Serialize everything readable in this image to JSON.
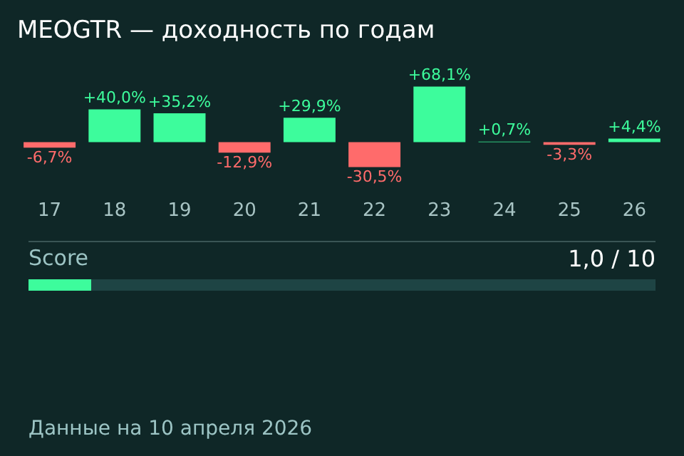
{
  "chart_data": {
    "type": "bar",
    "title": "MEOGTR — доходность по годам",
    "categories": [
      "17",
      "18",
      "19",
      "20",
      "21",
      "22",
      "23",
      "24",
      "25",
      "26"
    ],
    "values": [
      -6.7,
      40.0,
      35.2,
      -12.9,
      29.9,
      -30.5,
      68.1,
      0.7,
      -3.3,
      4.4
    ],
    "colors": [
      "#ff6b6b",
      "#3dfc9c",
      "#3dfc9c",
      "#ff6b6b",
      "#3dfc9c",
      "#ff6b6b",
      "#3dfc9c",
      "#3dfc9c",
      "#ff6b6b",
      "#3dfc9c"
    ],
    "value_labels": [
      "-6,7%",
      "+40,0%",
      "+35,2%",
      "-12,9%",
      "+29,9%",
      "-30,5%",
      "+68,1%",
      "+0,7%",
      "-3,3%",
      "+4,4%"
    ],
    "tick_labels": "x",
    "grid": false,
    "legend": false,
    "annotations": [
      "Score",
      "1,0 / 10",
      "Данные на 10 апреля 2026"
    ]
  }
}
